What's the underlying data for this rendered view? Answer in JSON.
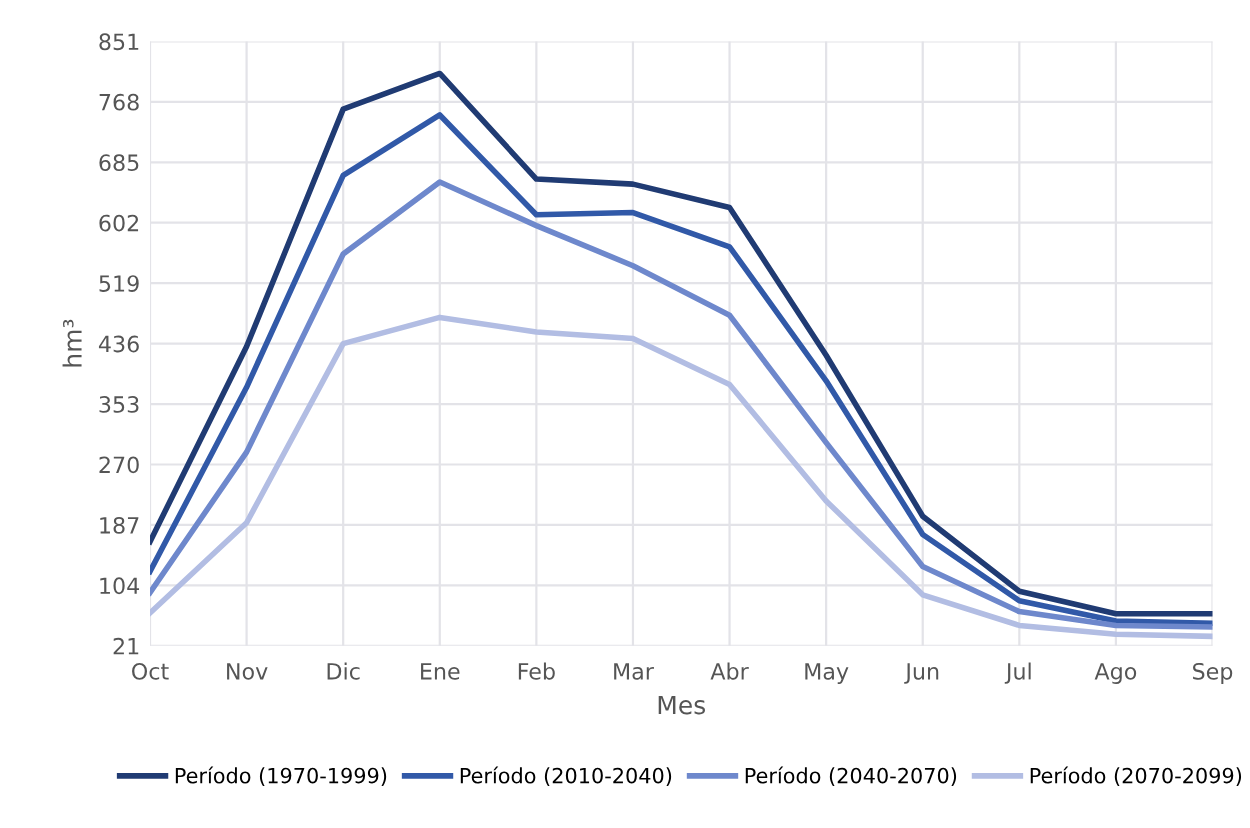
{
  "chart_data": {
    "type": "line",
    "xlabel": "Mes",
    "ylabel": "hm³",
    "categories": [
      "Oct",
      "Nov",
      "Dic",
      "Ene",
      "Feb",
      "Mar",
      "Abr",
      "May",
      "Jun",
      "Jul",
      "Ago",
      "Sep"
    ],
    "series": [
      {
        "name": "Período (1970-1999)",
        "color": "#203b73",
        "values": [
          164,
          432,
          758,
          807,
          662,
          655,
          623,
          420,
          199,
          96,
          65,
          65
        ]
      },
      {
        "name": "Período (2010-2040)",
        "color": "#3159a8",
        "values": [
          123,
          376,
          667,
          750,
          613,
          616,
          569,
          385,
          174,
          83,
          55,
          52
        ]
      },
      {
        "name": "Período (2040-2070)",
        "color": "#6e88cc",
        "values": [
          94,
          287,
          559,
          658,
          598,
          543,
          475,
          300,
          130,
          68,
          49,
          47
        ]
      },
      {
        "name": "Período (2070-2099)",
        "color": "#b2bde3",
        "values": [
          66,
          190,
          436,
          472,
          452,
          443,
          380,
          220,
          91,
          49,
          37,
          34
        ]
      }
    ],
    "ylim": [
      21,
      851
    ],
    "yticks": [
      21,
      104,
      187,
      270,
      353,
      436,
      519,
      602,
      685,
      768,
      851
    ],
    "grid": true,
    "legend": "bottom",
    "marker": "none",
    "line_style": "solid"
  }
}
